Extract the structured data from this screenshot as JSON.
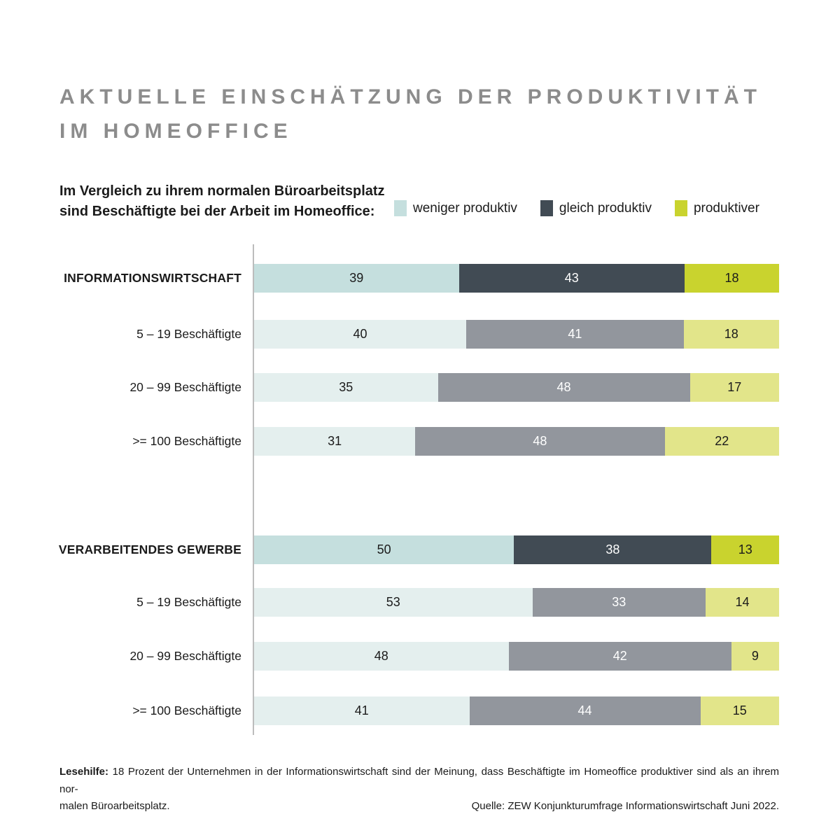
{
  "title": {
    "line1": "AKTUELLE EINSCHÄTZUNG DER PRODUKTIVITÄT",
    "line2": "IM HOMEOFFICE"
  },
  "intro": {
    "line1": "Im Vergleich zu ihrem normalen Büroarbeitsplatz",
    "line2": "sind Beschäftigte bei der Arbeit im Homeoffice:"
  },
  "legend": [
    {
      "label": "weniger produktiv",
      "color": "#c5dfde"
    },
    {
      "label": "gleich produktiv",
      "color": "#414b54"
    },
    {
      "label": "produktiver",
      "color": "#c9d32e"
    }
  ],
  "colors": {
    "title": "#8c8c8c",
    "axis": "#bcbcbc",
    "main": [
      "#c5dfde",
      "#414b54",
      "#c9d32e"
    ],
    "sub": [
      "#e4efee",
      "#92969d",
      "#e2e58a"
    ],
    "value_text": [
      "#1b1b1b",
      "#ffffff",
      "#1b1b1b"
    ]
  },
  "chart_data": {
    "type": "bar",
    "orientation": "horizontal",
    "stacked": true,
    "unit": "percent",
    "series": [
      "weniger produktiv",
      "gleich produktiv",
      "produktiver"
    ],
    "groups": [
      {
        "label": "INFORMATIONSWIRTSCHAFT",
        "emphasis": true,
        "values": [
          39,
          43,
          18
        ]
      },
      {
        "label": "5 – 19 Beschäftigte",
        "emphasis": false,
        "values": [
          40,
          41,
          18
        ]
      },
      {
        "label": "20 – 99 Beschäftigte",
        "emphasis": false,
        "values": [
          35,
          48,
          17
        ]
      },
      {
        "label": ">= 100 Beschäftigte",
        "emphasis": false,
        "values": [
          31,
          48,
          22
        ]
      },
      {
        "label": "VERARBEITENDES GEWERBE",
        "emphasis": true,
        "values": [
          50,
          38,
          13
        ]
      },
      {
        "label": "5 – 19 Beschäftigte",
        "emphasis": false,
        "values": [
          53,
          33,
          14
        ]
      },
      {
        "label": "20 – 99 Beschäftigte",
        "emphasis": false,
        "values": [
          48,
          42,
          9
        ]
      },
      {
        "label": ">= 100 Beschäftigte",
        "emphasis": false,
        "values": [
          41,
          44,
          15
        ]
      }
    ]
  },
  "footer": {
    "lesehilfe_label": "Lesehilfe:",
    "line1_rest": " 18 Prozent der Unternehmen in der Informationswirtschaft sind der Meinung, dass Beschäftigte im Homeoffice produktiver sind als an ihrem nor-",
    "line2_left": "malen Büroarbeitsplatz.",
    "source": "Quelle: ZEW Konjunkturumfrage Informationswirtschaft Juni 2022."
  }
}
